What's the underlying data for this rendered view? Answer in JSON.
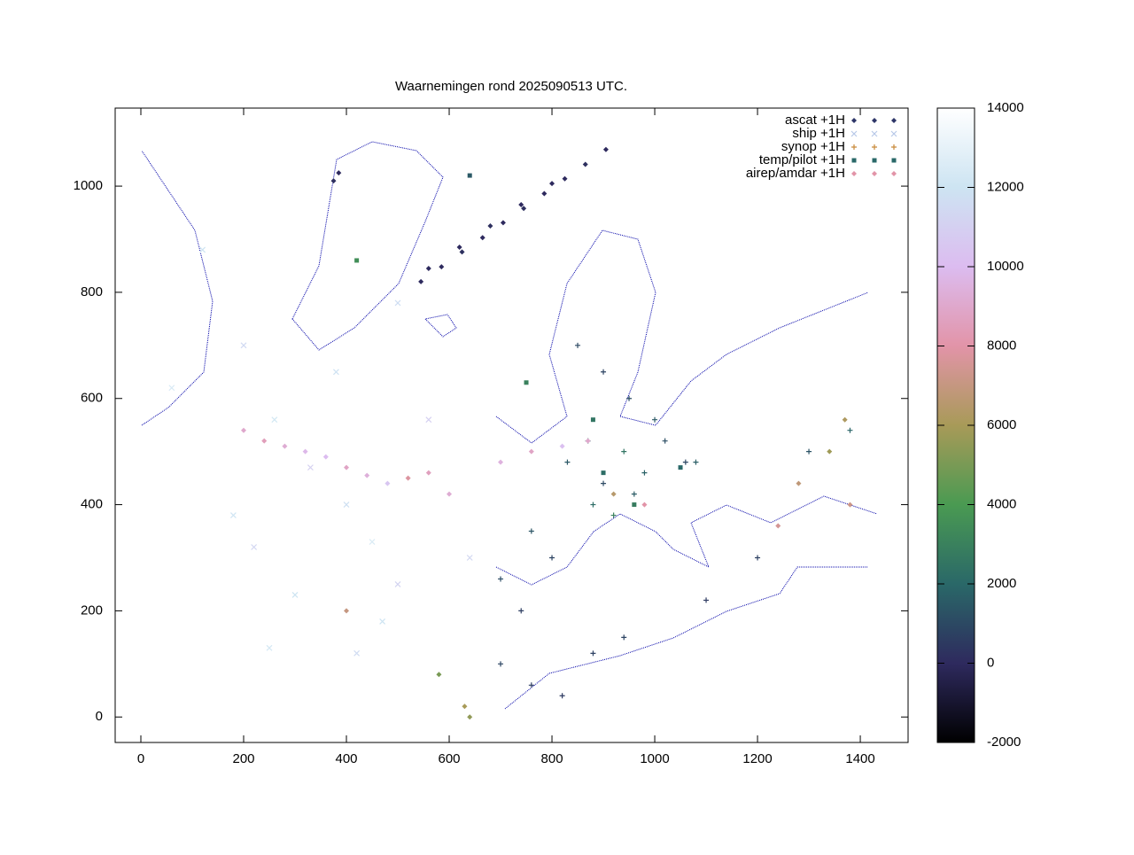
{
  "chart_data": {
    "type": "scatter",
    "title": "Waarnemingen rond 2025090513 UTC.",
    "xlim": [
      -50,
      1493
    ],
    "ylim": [
      -48,
      1147
    ],
    "xticks": [
      0,
      200,
      400,
      600,
      800,
      1000,
      1200,
      1400
    ],
    "yticks": [
      0,
      200,
      400,
      600,
      800,
      1000
    ],
    "legend": "top-right",
    "colorbar": {
      "lim": [
        -2000,
        14000
      ],
      "ticks": [
        -2000,
        0,
        2000,
        4000,
        6000,
        8000,
        10000,
        12000,
        14000
      ],
      "palette": [
        "#000000",
        "#2e2a5e",
        "#2a6868",
        "#4a9a52",
        "#a89a58",
        "#e294a8",
        "#dcbcf0",
        "#cde4f2",
        "#ffffff"
      ]
    },
    "series": [
      {
        "name": "ascat +1H",
        "color": "#2e3668",
        "marker": "diamond",
        "x": [
          545,
          585,
          625,
          665,
          705,
          745,
          785,
          825,
          865,
          905,
          560,
          620,
          680,
          740,
          800,
          375,
          385
        ],
        "y": [
          820,
          848,
          876,
          903,
          931,
          958,
          986,
          1014,
          1041,
          1069,
          845,
          885,
          925,
          965,
          1005,
          1010,
          1025
        ],
        "c": [
          0,
          0,
          200,
          0,
          0,
          200,
          0,
          0,
          200,
          0,
          0,
          0,
          200,
          0,
          0,
          200,
          0
        ]
      },
      {
        "name": "ship +1H",
        "color": "#b8c8e8",
        "marker": "cross",
        "x": [
          120,
          200,
          260,
          330,
          400,
          450,
          500,
          300,
          250,
          420,
          560,
          640,
          180,
          380,
          60,
          500,
          470,
          220
        ],
        "y": [
          880,
          700,
          560,
          470,
          400,
          330,
          250,
          230,
          130,
          120,
          560,
          300,
          380,
          650,
          620,
          780,
          180,
          320
        ],
        "c": [
          12000,
          11500,
          12200,
          11000,
          11800,
          12500,
          11200,
          12000,
          12300,
          11600,
          11000,
          11400,
          12100,
          11900,
          12400,
          11700,
          12000,
          11300
        ]
      },
      {
        "name": "synop +1H",
        "color": "#c88838",
        "marker": "plus",
        "x": [
          830,
          870,
          900,
          940,
          980,
          1020,
          1060,
          880,
          920,
          960,
          760,
          800,
          700,
          740,
          1100,
          1200,
          1300,
          1380,
          900,
          850,
          950,
          1000,
          1080,
          700,
          760,
          820,
          880,
          940
        ],
        "y": [
          480,
          520,
          440,
          500,
          460,
          520,
          480,
          400,
          380,
          420,
          350,
          300,
          260,
          200,
          220,
          300,
          500,
          540,
          650,
          700,
          600,
          560,
          480,
          100,
          60,
          40,
          120,
          150
        ],
        "c": [
          1500,
          2000,
          1000,
          2500,
          1800,
          1200,
          900,
          2200,
          3000,
          1600,
          1400,
          800,
          1100,
          600,
          500,
          700,
          1300,
          1900,
          800,
          1000,
          1200,
          1500,
          1700,
          900,
          600,
          500,
          700,
          800
        ]
      },
      {
        "name": "temp/pilot +1H",
        "color": "#2a6868",
        "marker": "square",
        "x": [
          640,
          880,
          750,
          1050,
          420,
          900,
          960
        ],
        "y": [
          1020,
          560,
          630,
          470,
          860,
          460,
          400
        ],
        "c": [
          1500,
          2500,
          3000,
          2000,
          3500,
          2200,
          2800
        ]
      },
      {
        "name": "airep/amdar +1H",
        "color": "#e294a8",
        "marker": "diamond",
        "x": [
          200,
          240,
          280,
          320,
          360,
          400,
          440,
          480,
          520,
          560,
          600,
          630,
          640,
          580,
          400,
          700,
          760,
          820,
          870,
          920,
          980,
          1240,
          1280,
          1340,
          1370,
          1380
        ],
        "y": [
          540,
          520,
          510,
          500,
          490,
          470,
          455,
          440,
          450,
          460,
          420,
          20,
          0,
          80,
          200,
          480,
          500,
          510,
          520,
          420,
          400,
          360,
          440,
          500,
          560,
          400
        ],
        "c": [
          9000,
          8500,
          9200,
          9800,
          10000,
          8800,
          9400,
          10500,
          7800,
          8600,
          9200,
          6000,
          5500,
          5000,
          7000,
          9500,
          8800,
          10200,
          9000,
          6500,
          8000,
          7500,
          6800,
          5800,
          6200,
          7200
        ]
      }
    ]
  }
}
